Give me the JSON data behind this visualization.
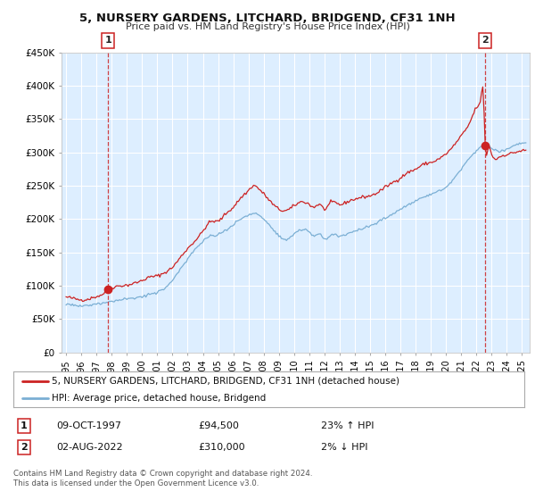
{
  "title": "5, NURSERY GARDENS, LITCHARD, BRIDGEND, CF31 1NH",
  "subtitle": "Price paid vs. HM Land Registry's House Price Index (HPI)",
  "ylim": [
    0,
    450000
  ],
  "xlim_start": 1994.7,
  "xlim_end": 2025.5,
  "yticks": [
    0,
    50000,
    100000,
    150000,
    200000,
    250000,
    300000,
    350000,
    400000,
    450000
  ],
  "ytick_labels": [
    "£0",
    "£50K",
    "£100K",
    "£150K",
    "£200K",
    "£250K",
    "£300K",
    "£350K",
    "£400K",
    "£450K"
  ],
  "xtick_years": [
    1995,
    1996,
    1997,
    1998,
    1999,
    2000,
    2001,
    2002,
    2003,
    2004,
    2005,
    2006,
    2007,
    2008,
    2009,
    2010,
    2011,
    2012,
    2013,
    2014,
    2015,
    2016,
    2017,
    2018,
    2019,
    2020,
    2021,
    2022,
    2023,
    2024,
    2025
  ],
  "red_line_color": "#cc2222",
  "blue_line_color": "#7bafd4",
  "plot_bg_color": "#ddeeff",
  "grid_color": "#ffffff",
  "fig_bg_color": "#ffffff",
  "marker1_date": 1997.77,
  "marker1_value": 94500,
  "marker2_date": 2022.58,
  "marker2_value": 310000,
  "vline1_x": 1997.77,
  "vline2_x": 2022.58,
  "legend_label_red": "5, NURSERY GARDENS, LITCHARD, BRIDGEND, CF31 1NH (detached house)",
  "legend_label_blue": "HPI: Average price, detached house, Bridgend",
  "table_row1": [
    "1",
    "09-OCT-1997",
    "£94,500",
    "23% ↑ HPI"
  ],
  "table_row2": [
    "2",
    "02-AUG-2022",
    "£310,000",
    "2% ↓ HPI"
  ],
  "footer_text": "Contains HM Land Registry data © Crown copyright and database right 2024.\nThis data is licensed under the Open Government Licence v3.0."
}
